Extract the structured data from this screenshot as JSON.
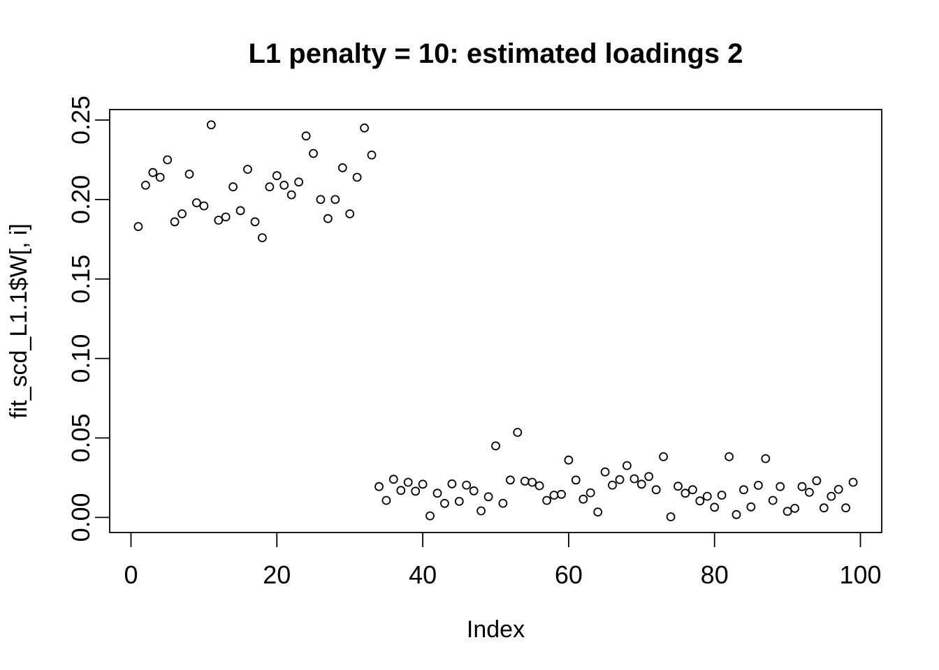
{
  "chart_data": {
    "type": "scatter",
    "title": "L1 penalty = 10: estimated loadings 2",
    "xlabel": "Index",
    "ylabel": "fit_scd_L1.1$W[, i]",
    "grid": false,
    "legend_position": "none",
    "marker": {
      "shape": "open-circle",
      "radius": 5.5,
      "stroke": "#000000",
      "stroke_width": 1.8,
      "fill": "none"
    },
    "colors": {
      "background": "#ffffff",
      "foreground": "#000000"
    },
    "xlim": [
      -2.92,
      102.92
    ],
    "ylim": [
      -0.0095,
      0.2566
    ],
    "xticks": {
      "values": [
        0,
        20,
        40,
        60,
        80,
        100
      ],
      "labels": [
        "0",
        "20",
        "40",
        "60",
        "80",
        "100"
      ]
    },
    "yticks": {
      "values": [
        0,
        0.05,
        0.1,
        0.15,
        0.2,
        0.25
      ],
      "labels": [
        "0.00",
        "0.05",
        "0.10",
        "0.15",
        "0.20",
        "0.25"
      ]
    },
    "x": [
      1,
      2,
      3,
      4,
      5,
      6,
      7,
      8,
      9,
      10,
      11,
      12,
      13,
      14,
      15,
      16,
      17,
      18,
      19,
      20,
      21,
      22,
      23,
      24,
      25,
      26,
      27,
      28,
      29,
      30,
      31,
      32,
      33,
      34,
      35,
      36,
      37,
      38,
      39,
      40,
      41,
      42,
      43,
      44,
      45,
      46,
      47,
      48,
      49,
      50,
      51,
      52,
      53,
      54,
      55,
      56,
      57,
      58,
      59,
      60,
      61,
      62,
      63,
      64,
      65,
      66,
      67,
      68,
      69,
      70,
      71,
      72,
      73,
      74,
      75,
      76,
      77,
      78,
      79,
      80,
      81,
      82,
      83,
      84,
      85,
      86,
      87,
      88,
      89,
      90,
      91,
      92,
      93,
      94,
      95,
      96,
      97,
      98,
      99
    ],
    "y": [
      0.183,
      0.209,
      0.217,
      0.214,
      0.225,
      0.186,
      0.191,
      0.216,
      0.198,
      0.196,
      0.247,
      0.187,
      0.189,
      0.208,
      0.193,
      0.219,
      0.186,
      0.176,
      0.208,
      0.215,
      0.209,
      0.203,
      0.211,
      0.24,
      0.229,
      0.2,
      0.188,
      0.2,
      0.22,
      0.191,
      0.214,
      0.245,
      0.228,
      0.0194,
      0.0107,
      0.024,
      0.017,
      0.0221,
      0.0165,
      0.0209,
      0.001,
      0.0152,
      0.0088,
      0.0211,
      0.0101,
      0.0203,
      0.0167,
      0.0041,
      0.013,
      0.045,
      0.0089,
      0.0235,
      0.0535,
      0.0228,
      0.0221,
      0.0199,
      0.0107,
      0.014,
      0.0145,
      0.0361,
      0.0235,
      0.0115,
      0.0155,
      0.0034,
      0.0286,
      0.0203,
      0.0238,
      0.0326,
      0.0243,
      0.0209,
      0.0257,
      0.0174,
      0.0382,
      0.0004,
      0.0196,
      0.0152,
      0.0174,
      0.0104,
      0.0133,
      0.0064,
      0.014,
      0.0382,
      0.0018,
      0.0174,
      0.0066,
      0.0202,
      0.037,
      0.0107,
      0.0194,
      0.0038,
      0.0057,
      0.0194,
      0.0158,
      0.0231,
      0.006,
      0.0133,
      0.0177,
      0.006,
      0.0221
    ]
  }
}
